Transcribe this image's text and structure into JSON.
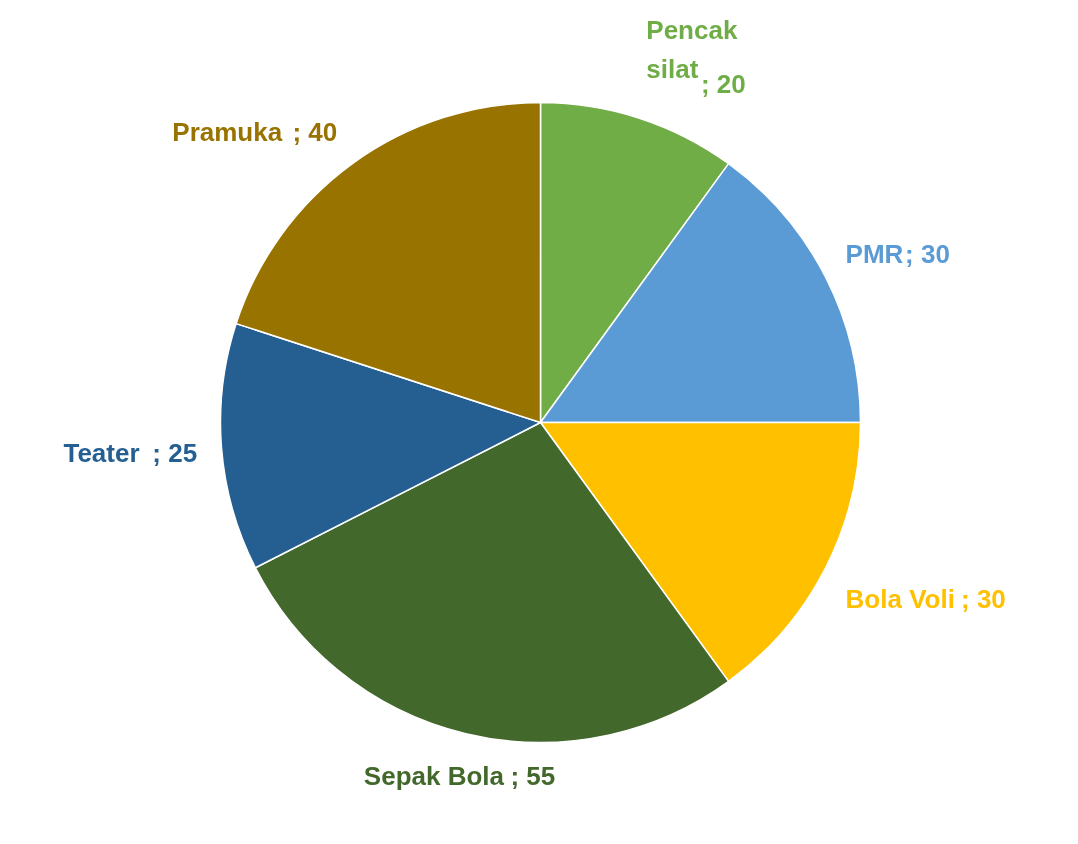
{
  "chart_data": {
    "type": "pie",
    "categories": [
      "Pencak silat",
      "PMR",
      "Bola Voli",
      "Sepak Bola",
      "Teater",
      "Pramuka "
    ],
    "values": [
      20,
      30,
      30,
      55,
      25,
      40
    ],
    "colors": [
      "#70ad47",
      "#5b9bd5",
      "#ffc000",
      "#43682b",
      "#255e91",
      "#997300"
    ],
    "value_labels": [
      "; 20",
      "; 30",
      "; 30",
      "; 55",
      "; 25",
      "; 40"
    ],
    "legend": false
  }
}
